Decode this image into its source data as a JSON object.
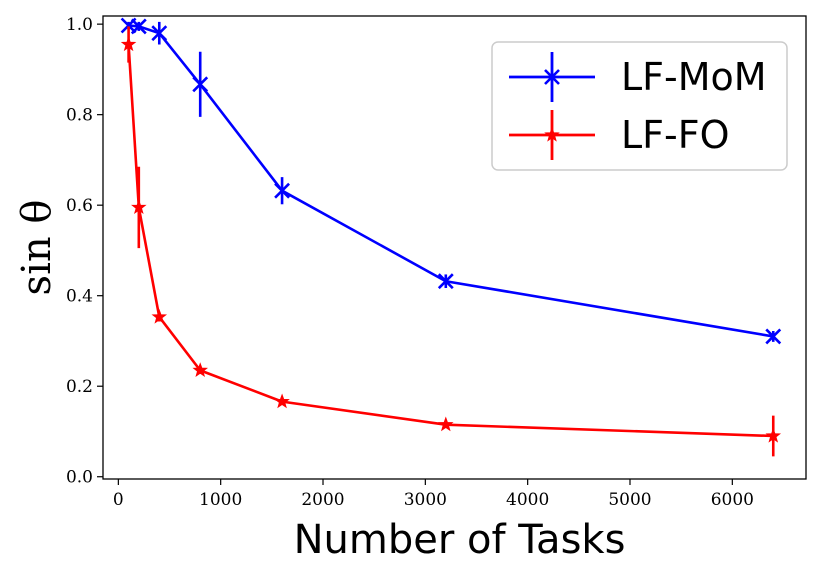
{
  "chart_data": {
    "type": "line",
    "xlabel": "Number of Tasks",
    "ylabel": "sin θ",
    "xlim": [
      -150,
      6720
    ],
    "ylim": [
      -0.005,
      1.018
    ],
    "xticks": [
      0,
      1000,
      2000,
      3000,
      4000,
      5000,
      6000
    ],
    "yticks": [
      0.0,
      0.2,
      0.4,
      0.6,
      0.8,
      1.0
    ],
    "ytick_labels": [
      "0.0",
      "0.2",
      "0.4",
      "0.6",
      "0.8",
      "1.0"
    ],
    "grid": false,
    "legend_position": "top-right",
    "series": [
      {
        "name": "LF-MoM",
        "color": "#0000ff",
        "marker": "x",
        "x": [
          100,
          200,
          400,
          800,
          1600,
          3200,
          6400
        ],
        "y": [
          0.997,
          0.995,
          0.98,
          0.867,
          0.632,
          0.432,
          0.31
        ],
        "yerr": [
          0.008,
          0.01,
          0.025,
          0.072,
          0.03,
          0.015,
          0.012
        ]
      },
      {
        "name": "LF-FO",
        "color": "#ff0000",
        "marker": "*",
        "x": [
          100,
          200,
          400,
          800,
          1600,
          3200,
          6400
        ],
        "y": [
          0.955,
          0.595,
          0.353,
          0.235,
          0.166,
          0.115,
          0.09
        ],
        "yerr": [
          0.04,
          0.09,
          0.01,
          0.008,
          0.006,
          0.005,
          0.045
        ]
      }
    ]
  }
}
